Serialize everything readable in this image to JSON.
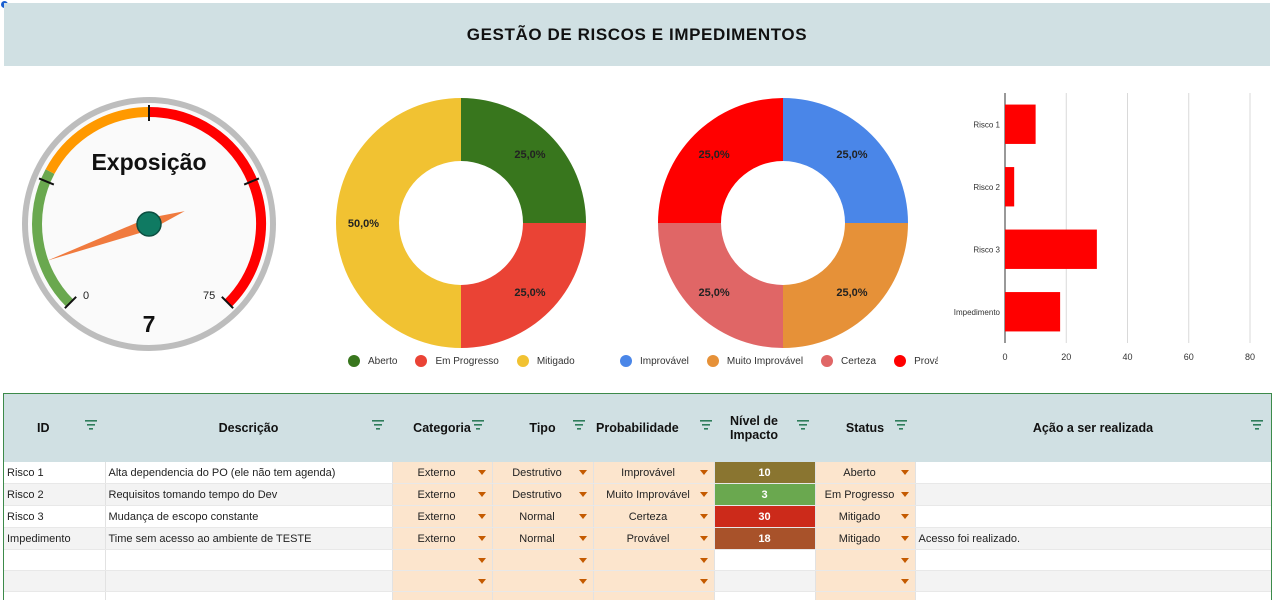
{
  "title": "GESTÃO DE RISCOS E IMPEDIMENTOS",
  "gauge": {
    "label": "Exposição",
    "value": 7,
    "min_label": "0",
    "max_label": "75",
    "min": 0,
    "max": 75
  },
  "colors": {
    "header_bg": "#d0e0e3",
    "select_bg": "#fce5cd",
    "aberto": "#38761d",
    "em_progresso": "#ea4335",
    "mitigado": "#f1c232",
    "improvavel": "#4a86e8",
    "muito_improvavel": "#e69138",
    "certeza": "#e06666",
    "provavel": "#ff0000"
  },
  "chart_data": [
    {
      "type": "pie",
      "donut": true,
      "slices": [
        {
          "label": "Aberto",
          "value": 25.0,
          "display": "25,0%",
          "color": "#38761d"
        },
        {
          "label": "Em Progresso",
          "value": 25.0,
          "display": "25,0%",
          "color": "#ea4335"
        },
        {
          "label": "Mitigado",
          "value": 50.0,
          "display": "50,0%",
          "color": "#f1c232"
        }
      ],
      "legend": "bottom"
    },
    {
      "type": "pie",
      "donut": true,
      "slices": [
        {
          "label": "Improvável",
          "value": 25.0,
          "display": "25,0%",
          "color": "#4a86e8"
        },
        {
          "label": "Muito Improvável",
          "value": 25.0,
          "display": "25,0%",
          "color": "#e69138"
        },
        {
          "label": "Certeza",
          "value": 25.0,
          "display": "25,0%",
          "color": "#e06666"
        },
        {
          "label": "Provável",
          "value": 25.0,
          "display": "25,0%",
          "color": "#ff0000"
        }
      ],
      "legend": "bottom"
    },
    {
      "type": "bar",
      "orientation": "horizontal",
      "categories": [
        "Risco 1",
        "Risco 2",
        "Risco 3",
        "Impedimento"
      ],
      "values": [
        10,
        3,
        30,
        18
      ],
      "xlim": [
        0,
        80
      ],
      "xticks": [
        0,
        20,
        40,
        60,
        80
      ],
      "color": "#ff0000",
      "grid": true
    }
  ],
  "table": {
    "headers": [
      "ID",
      "Descrição",
      "Categoria",
      "Tipo",
      "Probabilidade",
      "Nível de Impacto",
      "Status",
      "Ação a ser realizada"
    ],
    "rows": [
      {
        "id": "Risco 1",
        "descricao": "Alta dependencia do PO (ele não tem agenda)",
        "categoria": "Externo",
        "tipo": "Destrutivo",
        "probabilidade": "Improvável",
        "impacto": "10",
        "impacto_color": "#8a7530",
        "status": "Aberto",
        "acao": ""
      },
      {
        "id": "Risco 2",
        "descricao": "Requisitos tomando tempo do Dev",
        "categoria": "Externo",
        "tipo": "Destrutivo",
        "probabilidade": "Muito Improvável",
        "impacto": "3",
        "impacto_color": "#6aa84f",
        "status": "Em Progresso",
        "acao": ""
      },
      {
        "id": "Risco 3",
        "descricao": "Mudança de escopo constante",
        "categoria": "Externo",
        "tipo": "Normal",
        "probabilidade": "Certeza",
        "impacto": "30",
        "impacto_color": "#cc2a1a",
        "status": "Mitigado",
        "acao": ""
      },
      {
        "id": "Impedimento",
        "descricao": "Time sem acesso ao ambiente de TESTE",
        "categoria": "Externo",
        "tipo": "Normal",
        "probabilidade": "Provável",
        "impacto": "18",
        "impacto_color": "#a8522a",
        "status": "Mitigado",
        "acao": "Acesso foi realizado."
      }
    ],
    "blank_rows": 3
  }
}
